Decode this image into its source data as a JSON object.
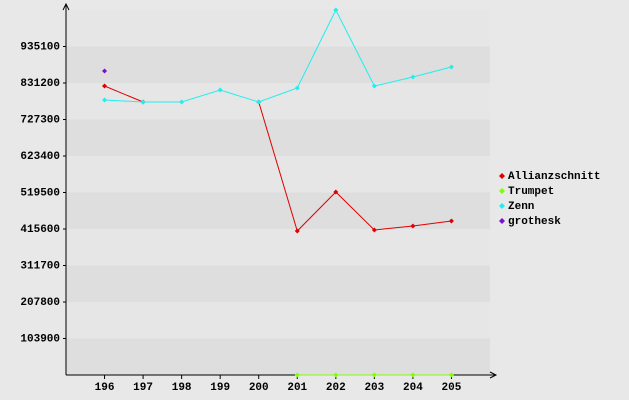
{
  "chart_data": {
    "type": "line",
    "categories": [
      "196",
      "197",
      "198",
      "199",
      "200",
      "201",
      "202",
      "203",
      "204",
      "205"
    ],
    "series": [
      {
        "name": "Allianzschnitt",
        "color": "#e00000",
        "values": [
          822600,
          777100,
          null,
          null,
          777100,
          409900,
          520900,
          412800,
          424100,
          438400
        ]
      },
      {
        "name": "Trumpet",
        "color": "#80ff00",
        "values": [
          null,
          null,
          null,
          null,
          null,
          0,
          0,
          0,
          0,
          0
        ]
      },
      {
        "name": "Zenn",
        "color": "#22eeee",
        "values": [
          782800,
          777100,
          777100,
          811300,
          777100,
          817000,
          1039000,
          822600,
          848300,
          876800
        ]
      },
      {
        "name": "grothesk",
        "color": "#7a10d0",
        "values": [
          865300,
          null,
          null,
          null,
          null,
          null,
          null,
          null,
          null,
          null
        ]
      }
    ],
    "ylim": [
      0,
      1039000
    ],
    "yticks": [
      103900,
      207800,
      311700,
      415600,
      519500,
      623400,
      727300,
      831200,
      935100
    ],
    "grid": true,
    "legend": "right"
  }
}
